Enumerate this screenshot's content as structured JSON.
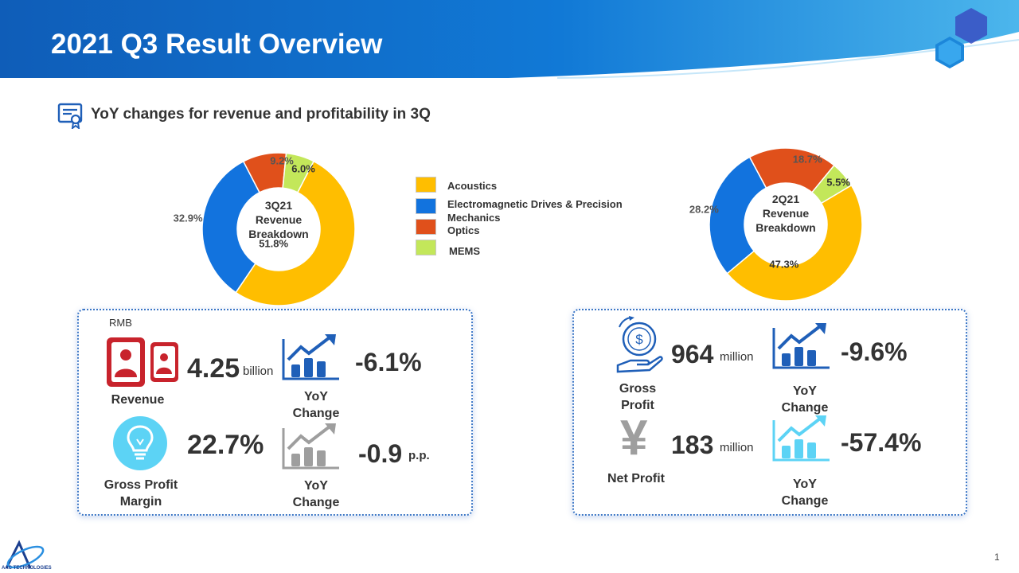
{
  "page": {
    "title": "2021 Q3 Result Overview",
    "subtitle": "YoY changes for revenue and profitability in 3Q",
    "page_number": "1",
    "logo_text": "AAC TECHNOLOGIES"
  },
  "colors": {
    "acoustics": "#FFBE00",
    "electromagnetic": "#1273DE",
    "optics": "#E0501B",
    "mems": "#C3E75A",
    "dark_blue": "#1F5FB8",
    "light_cyan": "#5CD3F5",
    "revenue_red": "#C8232C",
    "gray": "#9E9E9E"
  },
  "chart_data": [
    {
      "type": "pie",
      "center_label": [
        "3Q21",
        "Revenue",
        "Breakdown"
      ],
      "labels": [
        "Acoustics",
        "Electromagnetic Drives & Precision Mechanics",
        "Optics",
        "MEMS"
      ],
      "values": [
        51.8,
        32.9,
        9.2,
        6.0
      ],
      "value_labels": [
        "51.8%",
        "32.9%",
        "9.2%",
        "6.0%"
      ]
    },
    {
      "type": "pie",
      "center_label": [
        "2Q21",
        "Revenue",
        "Breakdown"
      ],
      "labels": [
        "Acoustics",
        "Electromagnetic Drives & Precision Mechanics",
        "Optics",
        "MEMS"
      ],
      "values": [
        47.3,
        28.2,
        18.7,
        5.5
      ],
      "value_labels": [
        "47.3%",
        "28.2%",
        "18.7%",
        "5.5%"
      ]
    }
  ],
  "legend": {
    "items": [
      {
        "lines": [
          "Acoustics"
        ],
        "color_key": "acoustics"
      },
      {
        "lines": [
          "Electromagnetic Drives & Precision",
          "Mechanics"
        ],
        "color_key": "electromagnetic"
      },
      {
        "lines": [
          "Optics"
        ],
        "color_key": "optics"
      },
      {
        "lines": [
          "MEMS"
        ],
        "color_key": "mems"
      }
    ]
  },
  "left_panel": {
    "currency": "RMB",
    "revenue": {
      "value": "4.25",
      "unit": "billion",
      "label": "Revenue",
      "yoy": "-6.1%",
      "yoy_label": [
        "YoY",
        "Change"
      ]
    },
    "gross_margin": {
      "value": "22.7%",
      "label": [
        "Gross Profit",
        "Margin"
      ],
      "yoy": "-0.9",
      "yoy_unit": "p.p.",
      "yoy_label": [
        "YoY",
        "Change"
      ]
    }
  },
  "right_panel": {
    "gross_profit": {
      "value": "964",
      "unit": "million",
      "label": [
        "Gross",
        "Profit"
      ],
      "yoy": "-9.6%",
      "yoy_label": [
        "YoY",
        "Change"
      ],
      "icon_symbol": "$"
    },
    "net_profit": {
      "value": "183",
      "unit": "million",
      "label": [
        "Net Profit"
      ],
      "yoy": "-57.4%",
      "yoy_label": [
        "YoY",
        "Change"
      ],
      "icon_symbol": "¥"
    }
  }
}
